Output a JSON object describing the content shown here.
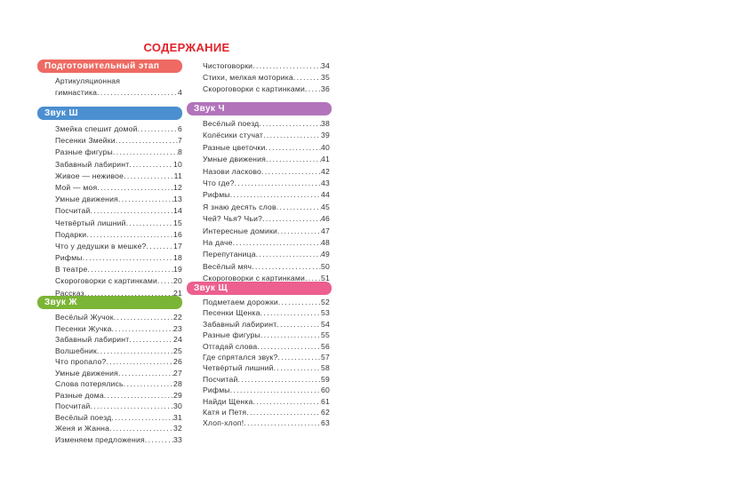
{
  "title": "СОДЕРЖАНИЕ",
  "colors": {
    "title": "#e2222b",
    "prep": "#ee6a62",
    "sh": "#4b8fd0",
    "zh": "#7bb535",
    "ch": "#b273bb",
    "shch": "#ec5f8e"
  },
  "sections": {
    "prep": {
      "header": "Подготовительный этап",
      "line1": "Артикуляционная",
      "items": [
        {
          "t": "гимнастика",
          "p": "4"
        }
      ]
    },
    "sh": {
      "header": "Звук Ш",
      "items": [
        {
          "t": "Змейка спешит домой",
          "p": "6"
        },
        {
          "t": "Песенки Змейки",
          "p": "7"
        },
        {
          "t": "Разные фигуры",
          "p": "8"
        },
        {
          "t": "Забавный лабиринт",
          "p": "10"
        },
        {
          "t": "Живое — неживое",
          "p": "11"
        },
        {
          "t": "Мой — моя",
          "p": "12"
        },
        {
          "t": "Умные движения",
          "p": "13"
        },
        {
          "t": "Посчитай",
          "p": "14"
        },
        {
          "t": "Четвёртый лишний",
          "p": "15"
        },
        {
          "t": "Подарки",
          "p": "16"
        },
        {
          "t": "Что у дедушки в мешке?",
          "p": "17"
        },
        {
          "t": "Рифмы",
          "p": "18"
        },
        {
          "t": "В театре",
          "p": "19"
        },
        {
          "t": "Скороговорки с картинками",
          "p": "20"
        },
        {
          "t": "Рассказ",
          "p": "21"
        }
      ]
    },
    "zh": {
      "header": "Звук Ж",
      "items": [
        {
          "t": "Весёлый Жучок",
          "p": "22"
        },
        {
          "t": "Песенки Жучка",
          "p": "23"
        },
        {
          "t": "Забавный лабиринт",
          "p": "24"
        },
        {
          "t": "Волшебник",
          "p": "25"
        },
        {
          "t": "Что пропало?",
          "p": "26"
        },
        {
          "t": "Умные движения",
          "p": "27"
        },
        {
          "t": "Слова потерялись",
          "p": "28"
        },
        {
          "t": "Разные дома",
          "p": "29"
        },
        {
          "t": "Посчитай",
          "p": "30"
        },
        {
          "t": "Весёлый поезд",
          "p": "31"
        },
        {
          "t": "Женя и Жанна",
          "p": "32"
        },
        {
          "t": "Изменяем предложения",
          "p": "33"
        }
      ]
    },
    "cont": {
      "items": [
        {
          "t": "Чистоговорки",
          "p": "34"
        },
        {
          "t": "Стихи, мелкая моторика",
          "p": "35"
        },
        {
          "t": "Скороговорки с картинками",
          "p": "36"
        }
      ]
    },
    "ch": {
      "header": "Звук Ч",
      "items": [
        {
          "t": "Весёлый поезд",
          "p": "38"
        },
        {
          "t": "Колёсики стучат",
          "p": "39"
        },
        {
          "t": "Разные цветочки",
          "p": "40"
        },
        {
          "t": "Умные движения",
          "p": "41"
        },
        {
          "t": "Назови ласково",
          "p": "42"
        },
        {
          "t": "Что где?",
          "p": "43"
        },
        {
          "t": "Рифмы",
          "p": "44"
        },
        {
          "t": "Я знаю десять слов",
          "p": "45"
        },
        {
          "t": "Чей? Чья? Чьи?",
          "p": "46"
        },
        {
          "t": "Интересные домики",
          "p": "47"
        },
        {
          "t": "На даче",
          "p": "48"
        },
        {
          "t": "Перепутаница",
          "p": "49"
        },
        {
          "t": "Весёлый мяч",
          "p": "50"
        },
        {
          "t": "Скороговорки с картинками",
          "p": "51"
        }
      ]
    },
    "shch": {
      "header": "Звук Щ",
      "items": [
        {
          "t": "Подметаем дорожки",
          "p": "52"
        },
        {
          "t": "Песенки Щенка",
          "p": "53"
        },
        {
          "t": "Забавный лабиринт",
          "p": "54"
        },
        {
          "t": "Разные фигуры",
          "p": "55"
        },
        {
          "t": "Отгадай слова",
          "p": "56"
        },
        {
          "t": "Где спрятался звук?",
          "p": "57"
        },
        {
          "t": "Четвёртый лишний",
          "p": "58"
        },
        {
          "t": "Посчитай",
          "p": "59"
        },
        {
          "t": "Рифмы",
          "p": "60"
        },
        {
          "t": "Найди Щенка",
          "p": "61"
        },
        {
          "t": "Катя и Петя",
          "p": "62"
        },
        {
          "t": "Хлоп-хлоп!",
          "p": "63"
        }
      ]
    }
  }
}
